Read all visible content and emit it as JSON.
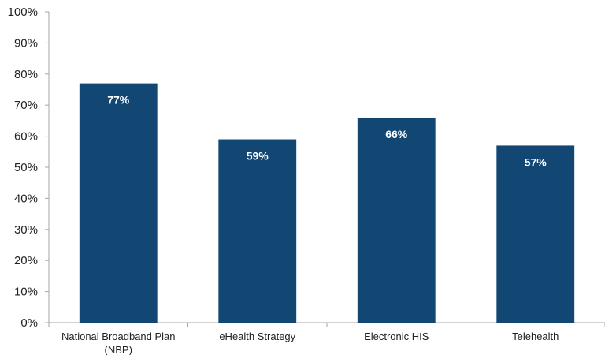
{
  "chart_data": {
    "type": "bar",
    "categories": [
      [
        "National Broadband Plan",
        "(NBP)"
      ],
      [
        "eHealth Strategy"
      ],
      [
        "Electronic HIS"
      ],
      [
        "Telehealth"
      ]
    ],
    "values": [
      77,
      59,
      66,
      57
    ],
    "data_labels": [
      "77%",
      "59%",
      "66%",
      "57%"
    ],
    "ylim": [
      0,
      100
    ],
    "y_ticks": [
      0,
      10,
      20,
      30,
      40,
      50,
      60,
      70,
      80,
      90,
      100
    ],
    "y_tick_labels": [
      "0%",
      "10%",
      "20%",
      "30%",
      "40%",
      "50%",
      "60%",
      "70%",
      "80%",
      "90%",
      "100%"
    ],
    "title": "",
    "xlabel": "",
    "ylabel": "",
    "grid": false,
    "legend": "none",
    "colors": {
      "bar": "#124774",
      "axis": "#a6a6a6",
      "text": "#222222",
      "label": "#ffffff"
    }
  }
}
